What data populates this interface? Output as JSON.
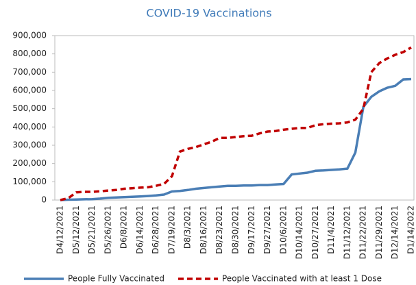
{
  "chart_data": {
    "type": "line",
    "title": "COVID-19 Vaccinations",
    "categories": [
      "D4/12/2021",
      null,
      "D5/12/2021",
      null,
      "D5/21/2021",
      null,
      "D5/26/2021",
      null,
      "D6/8/2021",
      null,
      "D6/14/2021",
      null,
      "D6/28/2021",
      null,
      "D7/19/2021",
      null,
      "D8/3/2021",
      null,
      "D8/16/2021",
      null,
      "D8/23/2021",
      null,
      "D8/30/2021",
      null,
      "D9/17/2021",
      null,
      "D9/27/2021",
      null,
      "D10/6/2021",
      null,
      "D10/14/2021",
      null,
      "D10/27/2021",
      null,
      "D11/4/2021",
      null,
      "D11/12/2021",
      null,
      "D11/22/2021",
      null,
      "D11/29/2021",
      null,
      "D12/14/2021",
      null,
      "D1/14/2022"
    ],
    "series": [
      {
        "name": "People Fully Vaccinated",
        "color": "#4a7eb5",
        "dash": false,
        "values": [
          0,
          2000,
          3000,
          4000,
          5000,
          8000,
          12000,
          14000,
          16000,
          18000,
          20000,
          22000,
          25000,
          30000,
          47000,
          50000,
          55000,
          62000,
          66000,
          70000,
          74000,
          78000,
          78000,
          80000,
          80000,
          82000,
          82000,
          85000,
          88000,
          140000,
          145000,
          150000,
          160000,
          162000,
          165000,
          168000,
          172000,
          260000,
          510000,
          565000,
          595000,
          615000,
          625000,
          660000,
          662000
        ]
      },
      {
        "name": "People Vaccinated with at least 1 Dose",
        "color": "#c00000",
        "dash": true,
        "values": [
          0,
          10000,
          42000,
          45000,
          45000,
          48000,
          52000,
          55000,
          62000,
          65000,
          68000,
          70000,
          78000,
          88000,
          130000,
          265000,
          280000,
          290000,
          305000,
          320000,
          340000,
          340000,
          345000,
          350000,
          352000,
          365000,
          375000,
          378000,
          385000,
          390000,
          395000,
          395000,
          410000,
          415000,
          418000,
          420000,
          425000,
          440000,
          500000,
          700000,
          750000,
          775000,
          795000,
          810000,
          835000
        ]
      }
    ],
    "ylim": [
      0,
      900000
    ],
    "yticks": [
      0,
      {
        "value": 100000,
        "label": "100,000"
      },
      {
        "value": 200000,
        "label": "200,000"
      },
      {
        "value": 300000,
        "label": "300,000"
      },
      {
        "value": 400000,
        "label": "400,000"
      },
      {
        "value": 500000,
        "label": "500,000"
      },
      {
        "value": 600000,
        "label": "600,000"
      },
      {
        "value": 700000,
        "label": "700,000"
      },
      {
        "value": 800000,
        "label": "800,000"
      },
      {
        "value": 900000,
        "label": "900,000"
      }
    ],
    "grid": false,
    "legend": "bottom"
  }
}
